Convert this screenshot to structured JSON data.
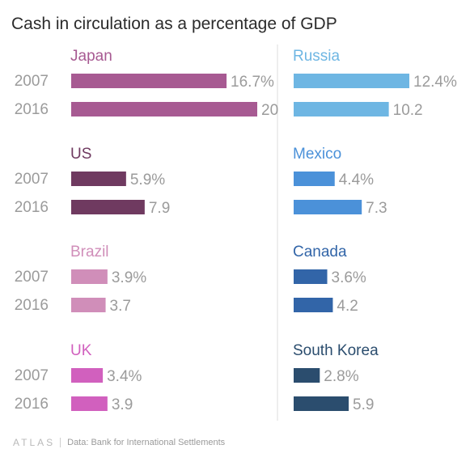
{
  "chart_data": {
    "type": "bar",
    "orientation": "horizontal",
    "layout": "small-multiples",
    "title": "Cash in circulation as a percentage of GDP",
    "row_labels": [
      "2007",
      "2016"
    ],
    "xlim": [
      0,
      20
    ],
    "grid": false,
    "panels": [
      {
        "name": "Japan",
        "color": "#a75a92",
        "values": [
          16.7,
          20
        ],
        "labels": [
          "16.7%",
          "20"
        ]
      },
      {
        "name": "Russia",
        "color": "#6eb6e3",
        "values": [
          12.4,
          10.2
        ],
        "labels": [
          "12.4%",
          "10.2"
        ]
      },
      {
        "name": "US",
        "color": "#6f3a60",
        "values": [
          5.9,
          7.9
        ],
        "labels": [
          "5.9%",
          "7.9"
        ]
      },
      {
        "name": "Mexico",
        "color": "#4b91d9",
        "values": [
          4.4,
          7.3
        ],
        "labels": [
          "4.4%",
          "7.3"
        ]
      },
      {
        "name": "Brazil",
        "color": "#d08eb9",
        "values": [
          3.9,
          3.7
        ],
        "labels": [
          "3.9%",
          "3.7"
        ]
      },
      {
        "name": "Canada",
        "color": "#3265a8",
        "values": [
          3.6,
          4.2
        ],
        "labels": [
          "3.6%",
          "4.2"
        ]
      },
      {
        "name": "UK",
        "color": "#d160be",
        "values": [
          3.4,
          3.9
        ],
        "labels": [
          "3.4%",
          "3.9"
        ]
      },
      {
        "name": "South Korea",
        "color": "#2b4d6e",
        "values": [
          2.8,
          5.9
        ],
        "labels": [
          "2.8%",
          "5.9"
        ]
      }
    ]
  },
  "colors": {
    "panel_name_text": {
      "Japan": "#a75a92",
      "Russia": "#6eb6e3",
      "US": "#6f3a60",
      "Mexico": "#4b91d9",
      "Brazil": "#d08eb9",
      "Canada": "#3265a8",
      "UK": "#d160be",
      "South Korea": "#2b4d6e"
    },
    "year_label": "#9b9b9b",
    "value_label": "#9b9b9b",
    "divider": "#dddddd"
  },
  "footer": {
    "logo": "ATLAS",
    "source": "Data:  Bank for International Settlements"
  }
}
